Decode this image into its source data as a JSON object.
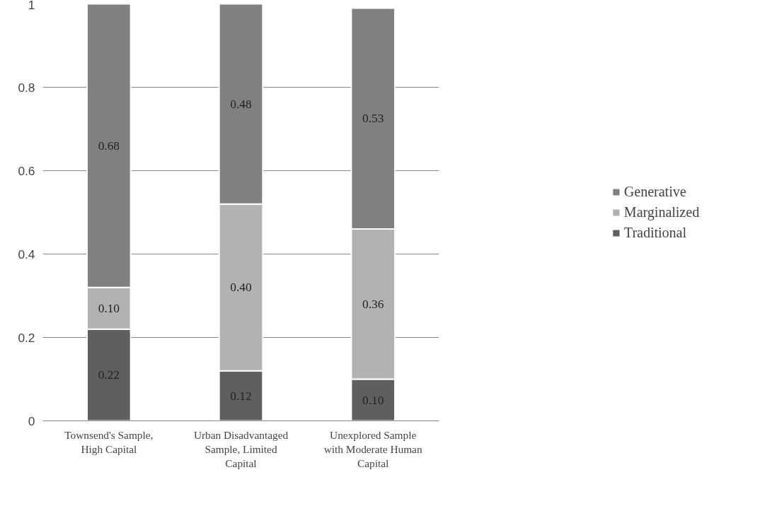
{
  "chart_data": {
    "type": "bar",
    "stacked": true,
    "categories": [
      "Townsend's Sample, High Capital",
      "Urban Disadvantaged Sample, Limited Capital",
      "Unexplored Sample with Moderate Human Capital"
    ],
    "series": [
      {
        "name": "Traditional",
        "color": "#5f5f5f",
        "values": [
          0.22,
          0.12,
          0.1
        ],
        "value_labels": [
          "0.22",
          "0.12",
          "0.10"
        ]
      },
      {
        "name": "Marginalized",
        "color": "#b2b2b2",
        "values": [
          0.1,
          0.4,
          0.36
        ],
        "value_labels": [
          "0.10",
          "0.40",
          "0.36"
        ]
      },
      {
        "name": "Generative",
        "color": "#808080",
        "values": [
          0.68,
          0.48,
          0.53
        ],
        "value_labels": [
          "0.68",
          "0.48",
          "0.53"
        ]
      }
    ],
    "ylim": [
      0,
      1
    ],
    "yticks": [
      0,
      0.2,
      0.4,
      0.6,
      0.8,
      1
    ],
    "grid": "y",
    "legend": "right"
  }
}
